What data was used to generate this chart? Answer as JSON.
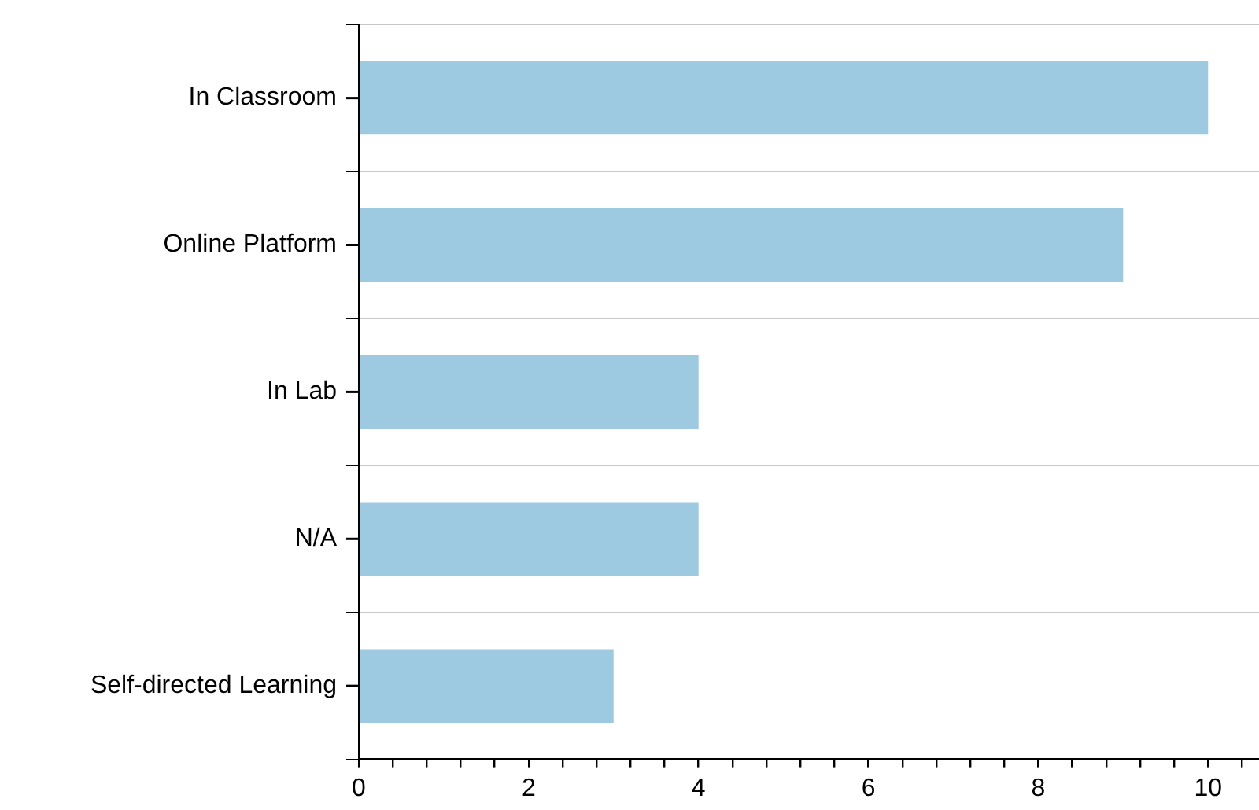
{
  "chart_data": {
    "type": "bar",
    "orientation": "horizontal",
    "categories": [
      "In Classroom",
      "Online Platform",
      "In Lab",
      "N/A",
      "Self-directed Learning"
    ],
    "values": [
      10,
      9,
      4,
      4,
      3
    ],
    "color": "#9ecae1",
    "xlim": [
      0,
      10.6
    ],
    "xticks": [
      0,
      {
        "value": 0.4,
        "label": null
      },
      {
        "value": 0.8,
        "label": null
      },
      {
        "value": 1.2,
        "label": null
      },
      {
        "value": 1.6,
        "label": null
      },
      2,
      {
        "value": 2.4,
        "label": null
      },
      {
        "value": 2.8,
        "label": null
      },
      {
        "value": 3.2,
        "label": null
      },
      {
        "value": 3.6,
        "label": null
      },
      4,
      {
        "value": 4.4,
        "label": null
      },
      {
        "value": 4.8,
        "label": null
      },
      {
        "value": 5.2,
        "label": null
      },
      {
        "value": 5.6,
        "label": null
      },
      6,
      {
        "value": 6.4,
        "label": null
      },
      {
        "value": 6.8,
        "label": null
      },
      {
        "value": 7.2,
        "label": null
      },
      {
        "value": 7.6,
        "label": null
      },
      8,
      {
        "value": 8.4,
        "label": null
      },
      {
        "value": 8.8,
        "label": null
      },
      {
        "value": 9.2,
        "label": null
      },
      {
        "value": 9.6,
        "label": null
      },
      10,
      {
        "value": 10.4,
        "label": null
      }
    ],
    "grid": "y"
  }
}
